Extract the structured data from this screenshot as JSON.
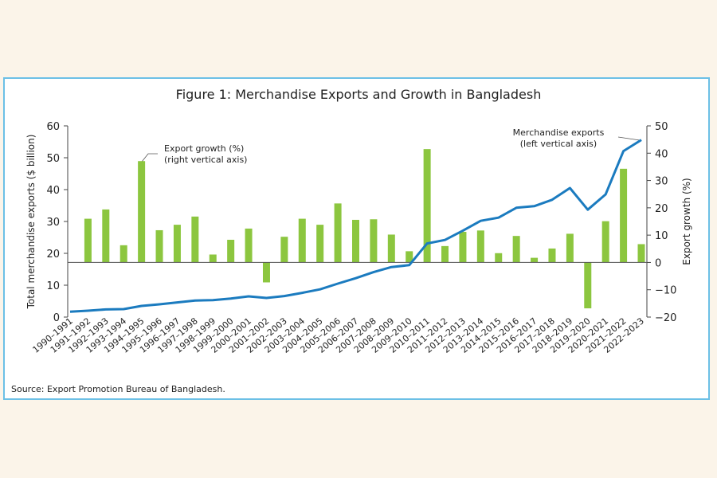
{
  "chart_data": {
    "type": "bar+line",
    "title": "Figure 1: Merchandise Exports and Growth in Bangladesh",
    "source": "Source: Export Promotion Bureau of Bangladesh.",
    "ylabel_left": "Total merchandise exports ($ billion)",
    "ylabel_right": "Export growth (%)",
    "ylim_left": [
      0,
      60
    ],
    "ylim_right": [
      -20,
      50
    ],
    "yticks_left": [
      0,
      10,
      20,
      30,
      40,
      50,
      60
    ],
    "yticks_right": [
      -20,
      -10,
      0,
      10,
      20,
      30,
      40,
      50
    ],
    "ytick_labels_right": [
      "−20",
      "−10",
      "0",
      "10",
      "20",
      "30",
      "40",
      "50"
    ],
    "categories": [
      "1990–1991",
      "1991–1992",
      "1992–1993",
      "1993–1994",
      "1994–1995",
      "1995–1996",
      "1996–1997",
      "1997–1998",
      "1998–1999",
      "1999–2000",
      "2000–2001",
      "2001–2002",
      "2002–2003",
      "2003–2004",
      "2004–2005",
      "2005–2006",
      "2006–2007",
      "2007–2008",
      "2008–2009",
      "2009–2010",
      "2010–2011",
      "2011–2012",
      "2012–2013",
      "2013–2014",
      "2014–2015",
      "2015–2016",
      "2016–2017",
      "2017–2018",
      "2018–2019",
      "2019–2020",
      "2020–2021",
      "2021–2022",
      "2022–2023"
    ],
    "series": [
      {
        "name": "Export growth (%)",
        "axis": "right",
        "kind": "bar",
        "color": "#8cc63f",
        "values": [
          null,
          16.0,
          19.4,
          6.3,
          37.1,
          11.8,
          13.8,
          16.8,
          2.9,
          8.3,
          12.4,
          -7.3,
          9.4,
          16.0,
          13.8,
          21.6,
          15.6,
          15.8,
          10.2,
          4.1,
          41.5,
          6.0,
          11.2,
          11.7,
          3.4,
          9.7,
          1.7,
          5.1,
          10.5,
          -16.8,
          15.1,
          34.3,
          6.7
        ]
      },
      {
        "name": "Merchandise exports",
        "axis": "left",
        "kind": "line",
        "color": "#1b7bbf",
        "values": [
          1.7,
          2.0,
          2.4,
          2.5,
          3.5,
          4.0,
          4.6,
          5.2,
          5.3,
          5.8,
          6.5,
          6.0,
          6.6,
          7.6,
          8.7,
          10.5,
          12.2,
          14.1,
          15.7,
          16.3,
          23.1,
          24.2,
          27.1,
          30.2,
          31.2,
          34.3,
          34.8,
          36.8,
          40.5,
          33.7,
          38.5,
          52.1,
          55.6
        ]
      }
    ],
    "annotations": {
      "bars": [
        "Export growth (%)",
        "(right vertical axis)"
      ],
      "line": [
        "Merchandise exports",
        "(left vertical axis)"
      ]
    }
  }
}
